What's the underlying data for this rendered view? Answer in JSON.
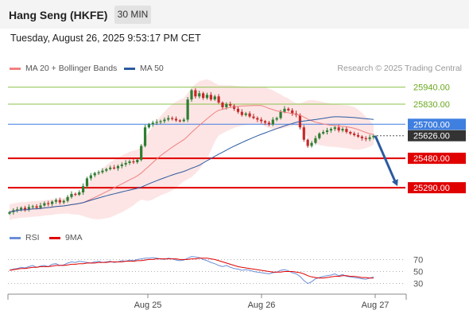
{
  "header": {
    "title": "Hang Seng (HKFE)",
    "timeframe": "30 MIN"
  },
  "datetime": "Tuesday, August 26, 2025 9:53:17 PM CET",
  "legend": {
    "ma20": "MA 20 + Bollinger Bands",
    "ma50": "MA 50",
    "rsi": "RSI",
    "ma9": "9MA"
  },
  "credit": "Research © 2025 Trading Central",
  "colors": {
    "up": "#2e7d32",
    "down": "#c62828",
    "ma20": "#f08080",
    "ma50": "#2c5aa0",
    "band": "#fde0e0",
    "resistance": "#8bc34a",
    "pivot": "#3f7fe0",
    "support": "#e00000",
    "rsi": "#6a8fd8",
    "rsi_ma": "#e00000"
  },
  "chart_data": {
    "type": "candlestick",
    "title": "Hang Seng (HKFE)",
    "x_labels": [
      "Aug 25",
      "Aug 26",
      "Aug 27"
    ],
    "ylim": [
      25080,
      26020
    ],
    "levels": [
      {
        "label": "25940.00",
        "value": 25940,
        "kind": "resistance"
      },
      {
        "label": "25830.00",
        "value": 25830,
        "kind": "resistance"
      },
      {
        "label": "25700.00",
        "value": 25700,
        "kind": "pivot"
      },
      {
        "label": "25626.00",
        "value": 25626,
        "kind": "last"
      },
      {
        "label": "25480.00",
        "value": 25480,
        "kind": "support"
      },
      {
        "label": "25290.00",
        "value": 25290,
        "kind": "support"
      }
    ],
    "close": [
      25132,
      25145,
      25150,
      25160,
      25148,
      25165,
      25170,
      25160,
      25175,
      25190,
      25185,
      25200,
      25210,
      25195,
      25205,
      25230,
      25250,
      25245,
      25260,
      25300,
      25350,
      25370,
      25385,
      25390,
      25400,
      25410,
      25420,
      25415,
      25430,
      25440,
      25450,
      25460,
      25455,
      25470,
      25560,
      25680,
      25700,
      25710,
      25715,
      25720,
      25730,
      25740,
      25735,
      25725,
      25720,
      25730,
      25860,
      25920,
      25880,
      25900,
      25870,
      25890,
      25860,
      25880,
      25840,
      25810,
      25830,
      25820,
      25800,
      25780,
      25760,
      25770,
      25750,
      25740,
      25730,
      25720,
      25710,
      25700,
      25730,
      25740,
      25780,
      25800,
      25790,
      25770,
      25760,
      25680,
      25600,
      25560,
      25580,
      25610,
      25640,
      25650,
      25660,
      25670,
      25680,
      25660,
      25670,
      25650,
      25640,
      25630,
      25620,
      25610,
      25605,
      25615,
      25626
    ],
    "rsi": {
      "ticks": [
        70,
        50,
        30
      ],
      "ylim": [
        15,
        85
      ],
      "values": [
        52,
        54,
        55,
        57,
        56,
        58,
        60,
        57,
        59,
        60,
        58,
        62,
        63,
        60,
        61,
        64,
        66,
        65,
        67,
        66,
        65,
        64,
        66,
        67,
        65,
        66,
        67,
        65,
        66,
        68,
        67,
        69,
        68,
        70,
        71,
        72,
        72,
        73,
        72,
        71,
        70,
        72,
        71,
        69,
        68,
        69,
        72,
        75,
        74,
        73,
        70,
        68,
        65,
        63,
        60,
        58,
        60,
        57,
        55,
        54,
        52,
        53,
        52,
        50,
        49,
        48,
        47,
        46,
        48,
        49,
        52,
        53,
        51,
        48,
        46,
        42,
        35,
        30,
        33,
        38,
        40,
        42,
        43,
        44,
        46,
        43,
        45,
        42,
        41,
        40,
        39,
        38,
        37,
        39,
        41
      ],
      "ma": [
        52,
        53,
        54,
        55,
        55,
        56,
        57,
        57,
        58,
        58,
        58,
        59,
        60,
        60,
        60,
        61,
        62,
        62,
        63,
        63,
        64,
        64,
        64,
        65,
        65,
        65,
        66,
        66,
        66,
        66,
        67,
        67,
        67,
        68,
        68,
        69,
        70,
        70,
        71,
        71,
        71,
        71,
        71,
        71,
        70,
        70,
        70,
        71,
        71,
        72,
        72,
        72,
        71,
        70,
        68,
        66,
        64,
        62,
        60,
        58,
        57,
        56,
        55,
        54,
        53,
        52,
        51,
        50,
        49,
        49,
        49,
        50,
        50,
        50,
        49,
        48,
        46,
        43,
        41,
        40,
        39,
        39,
        40,
        41,
        42,
        42,
        43,
        43,
        42,
        42,
        41,
        40,
        40,
        39,
        39
      ]
    }
  }
}
